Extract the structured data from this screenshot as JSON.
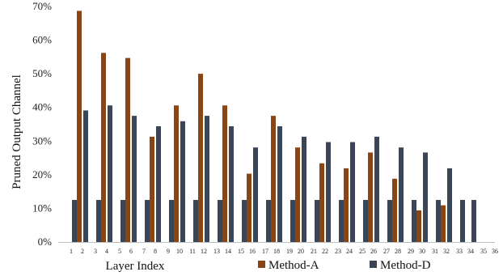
{
  "chart_data": {
    "type": "bar",
    "ylabel": "Pruned Output Channel",
    "xlabel": "Layer Index",
    "ylim": [
      0,
      70
    ],
    "yticks": [
      "0%",
      "10%",
      "20%",
      "30%",
      "40%",
      "50%",
      "60%",
      "70%"
    ],
    "yticks_values": [
      0,
      10,
      20,
      30,
      40,
      50,
      60,
      70
    ],
    "categories": [
      "1",
      "2",
      "3",
      "4",
      "5",
      "6",
      "7",
      "8",
      "9",
      "10",
      "11",
      "12",
      "13",
      "14",
      "15",
      "16",
      "17",
      "18",
      "19",
      "20",
      "21",
      "22",
      "23",
      "24",
      "25",
      "26",
      "27",
      "28",
      "29",
      "30",
      "31",
      "32",
      "33",
      "34",
      "35",
      "36"
    ],
    "grid": false,
    "legend_position": "bottom",
    "series": [
      {
        "name": "Method-A",
        "color": "#8B4513",
        "values": [
          0,
          68.7,
          0,
          56.2,
          0,
          54.7,
          0,
          31.3,
          0,
          40.6,
          0,
          50.0,
          0,
          40.6,
          0,
          20.3,
          0,
          37.5,
          0,
          28.1,
          0,
          23.4,
          0,
          21.9,
          0,
          26.6,
          0,
          18.8,
          0,
          9.4,
          0,
          10.9,
          0,
          0,
          0,
          0
        ]
      },
      {
        "name": "Method-D",
        "color": "#3A4556",
        "values": [
          12.5,
          39.1,
          12.5,
          40.6,
          12.5,
          37.5,
          12.5,
          34.4,
          12.5,
          35.9,
          12.5,
          37.5,
          12.5,
          34.4,
          12.5,
          28.1,
          12.5,
          34.4,
          12.5,
          31.3,
          12.5,
          29.7,
          12.5,
          29.7,
          12.5,
          31.3,
          12.5,
          28.1,
          12.5,
          26.6,
          12.5,
          21.9,
          12.5,
          12.5,
          0,
          0
        ]
      }
    ]
  }
}
